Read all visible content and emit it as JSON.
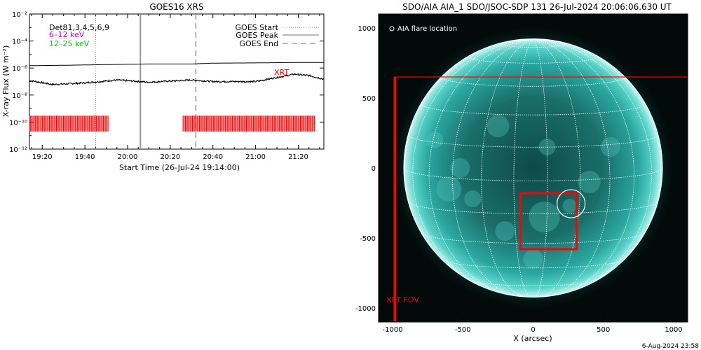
{
  "goes": {
    "title": "GOES16 XRS",
    "ylabel": "X-ray Flux (W m⁻²)",
    "xlabel": "Start Time (26-Jul-24 19:14:00)",
    "legend_top_left": [
      "Det81,3,4,5,6,9",
      "6–12 keV",
      "12–25 keV"
    ],
    "legend_top_right": [
      "GOES Start",
      "GOES Peak",
      "GOES End"
    ],
    "annotation_xrt": "XRT",
    "colors": {
      "det": "#000000",
      "lo": "#cc00cc",
      "hi": "#00cc00",
      "xrt": "#ff0000"
    }
  },
  "aia": {
    "title": "SDO/AIA AIA_1 SDO/JSOC-SDP 131 26-Jul-2024 20:06:06.630 UT",
    "legend": "AIA flare location",
    "xlabel": "X (arcsec)",
    "fov_label": "XRT FOV",
    "footer": "6-Aug-2024 23:58",
    "colors": {
      "disk": "#2aa7a0",
      "grid": "#ffffff",
      "box": "#ff0000"
    }
  },
  "chart_data": [
    {
      "type": "line",
      "title": "GOES16 XRS",
      "xlabel": "Start Time (26-Jul-24 19:14:00)",
      "ylabel": "X-ray Flux (W m⁻²)",
      "x_ticks": [
        "19:20",
        "19:40",
        "20:00",
        "20:20",
        "20:40",
        "21:00",
        "21:20"
      ],
      "y_ticks": [
        "10⁻¹²",
        "10⁻¹⁰",
        "10⁻⁸",
        "10⁻⁶",
        "10⁻⁴",
        "10⁻²"
      ],
      "y_scale": "log",
      "ylim": [
        1e-12,
        0.01
      ],
      "xlim": [
        "19:14",
        "21:32"
      ],
      "series": [
        {
          "name": "GOES Peak",
          "x": [
            "19:14",
            "19:30",
            "19:50",
            "20:10",
            "20:30",
            "20:40",
            "21:00",
            "21:10",
            "21:20",
            "21:32"
          ],
          "values": [
            1.5e-06,
            1.6e-06,
            1.8e-06,
            2e-06,
            2e-06,
            2.3e-06,
            2.4e-06,
            2.5e-06,
            2.6e-06,
            2.6e-06
          ]
        },
        {
          "name": "",
          "x": [
            "19:14",
            "19:25",
            "19:40",
            "19:55",
            "20:10",
            "20:30",
            "20:40",
            "21:00",
            "21:10",
            "21:18",
            "21:25",
            "21:32"
          ],
          "values": [
            1.2e-07,
            6e-08,
            8e-08,
            1.3e-07,
            9e-08,
            1.3e-07,
            1e-07,
            1e-07,
            2e-07,
            3.5e-07,
            2.8e-07,
            1.5e-07
          ]
        }
      ],
      "markers": {
        "goes_start": "19:45",
        "goes_peak": "20:06",
        "goes_end": "20:32"
      },
      "xrt_coverage": [
        [
          "19:14",
          "19:51"
        ],
        "20:26",
        "21:28"
      ]
    },
    {
      "type": "scatter",
      "title": "SDO/AIA AIA_1 SDO/JSOC-SDP 131 26-Jul-2024 20:06:06.630 UT",
      "xlabel": "X (arcsec)",
      "x_ticks": [
        -1000,
        -500,
        0,
        500,
        1000
      ],
      "y_ticks": [
        1000,
        500,
        0,
        -500,
        -1000
      ],
      "xlim": [
        -1100,
        1100
      ],
      "ylim": [
        -1100,
        1100
      ],
      "solar_radius": 920,
      "xrt_fov": {
        "x": [
          -990,
          1100
        ],
        "y": [
          -1100,
          650
        ]
      },
      "red_box": {
        "x": [
          -90,
          310
        ],
        "y": [
          -580,
          -180
        ]
      },
      "flare_location": {
        "x": 270,
        "y": -255
      }
    }
  ]
}
